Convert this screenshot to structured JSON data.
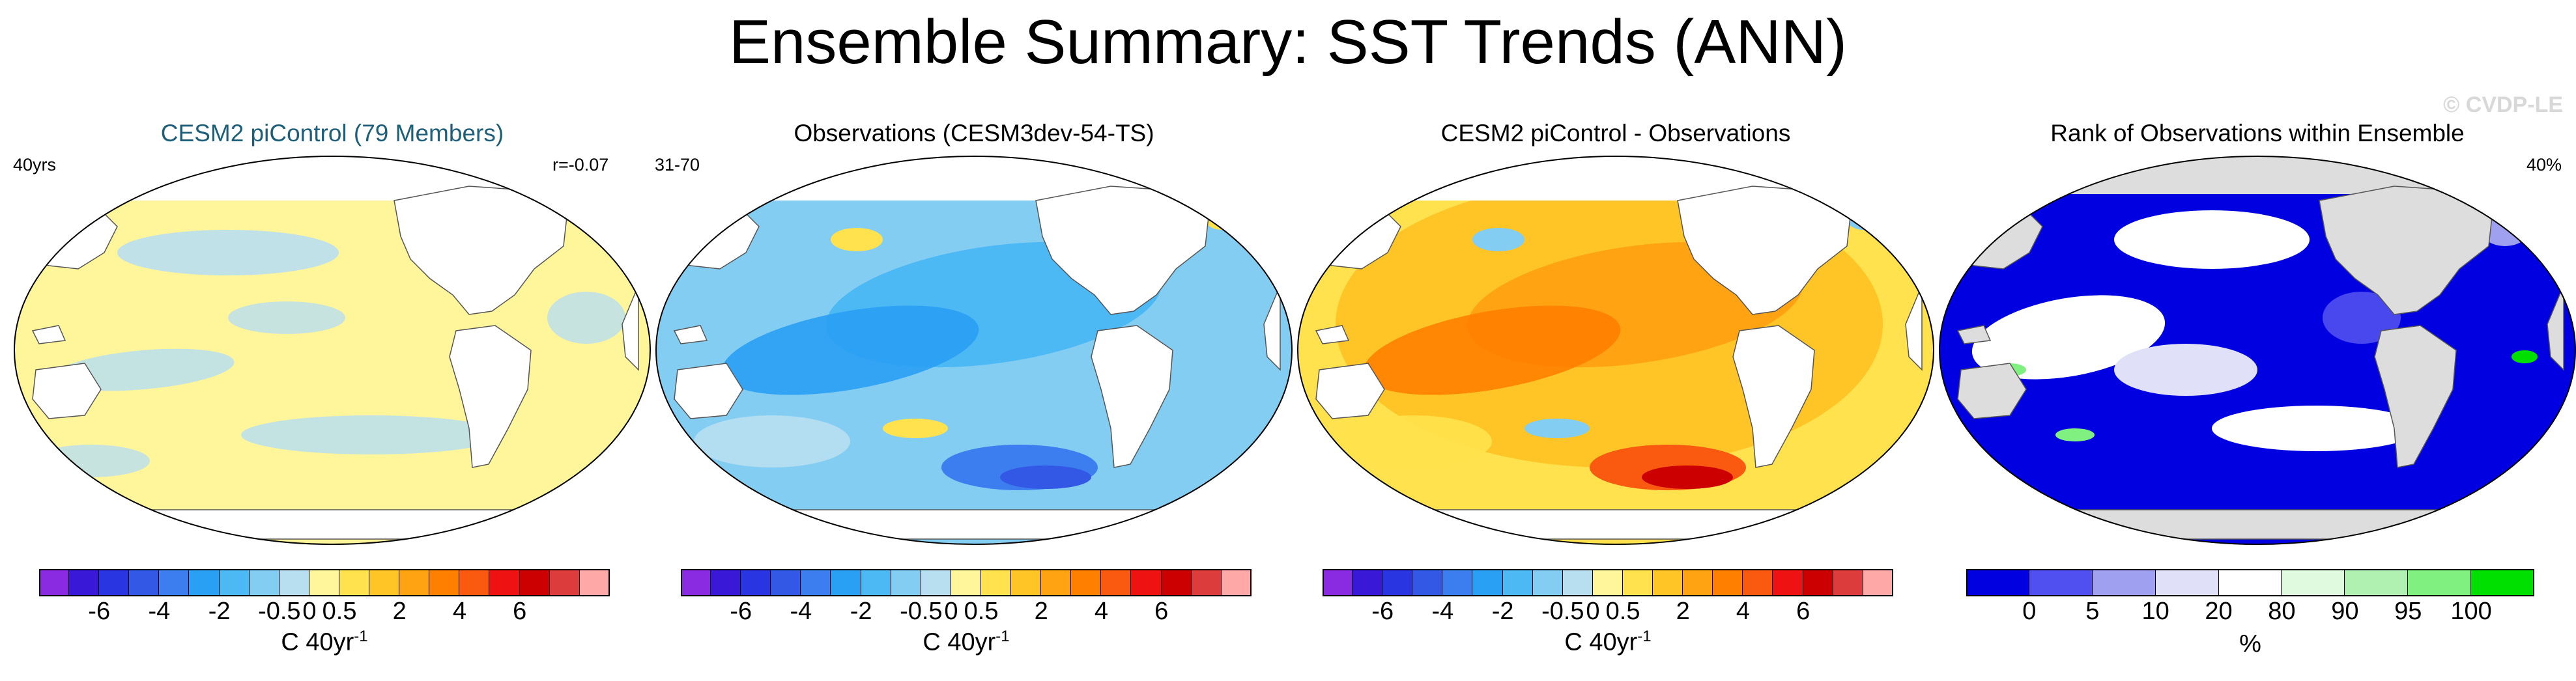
{
  "figure": {
    "title": "Ensemble Summary: SST Trends (ANN)",
    "watermark": "© CVDP-LE"
  },
  "panels": [
    {
      "title": "CESM2 piControl (79 Members)",
      "title_color": "#1d5f7a",
      "left_label": "40yrs",
      "right_label": "r=-0.07",
      "colorbar": "trend",
      "pattern": "model"
    },
    {
      "title": "Observations (CESM3dev-54-TS)",
      "title_color": "#000000",
      "left_label": "31-70",
      "right_label": "",
      "colorbar": "trend",
      "pattern": "obs"
    },
    {
      "title": "CESM2 piControl - Observations",
      "title_color": "#000000",
      "left_label": "",
      "right_label": "",
      "colorbar": "trend",
      "pattern": "diff"
    },
    {
      "title": "Rank of Observations within Ensemble",
      "title_color": "#000000",
      "left_label": "",
      "right_label": "40%",
      "colorbar": "rank",
      "pattern": "rank"
    }
  ],
  "colorbars": {
    "trend": {
      "colors": [
        "#8a2be2",
        "#3a18d8",
        "#2835e0",
        "#3358e6",
        "#3c7ef0",
        "#2aa0f4",
        "#4cb8f4",
        "#84cdf2",
        "#b8dff0",
        "#fff59a",
        "#ffe24d",
        "#ffc526",
        "#ffa312",
        "#ff8000",
        "#f95a10",
        "#ee1212",
        "#cc0000",
        "#dc3c3c",
        "#ffa8a8"
      ],
      "tick_labels": [
        "-6",
        "-4",
        "-2",
        "-0.5",
        "0",
        "0.5",
        "2",
        "4",
        "6"
      ],
      "unit": "C 40yr",
      "unit_sup": "-1"
    },
    "rank": {
      "colors": [
        "#0000e0",
        "#5050f0",
        "#a0a0f0",
        "#e0e0f8",
        "#ffffff",
        "#e0fae0",
        "#b0f0b0",
        "#80f080",
        "#00e000"
      ],
      "tick_labels": [
        "0",
        "5",
        "10",
        "20",
        "80",
        "90",
        "95",
        "100"
      ],
      "unit": "%"
    }
  },
  "legend_text": {
    "trend_unit_full": "C 40yr-1",
    "rank_unit": "%"
  }
}
